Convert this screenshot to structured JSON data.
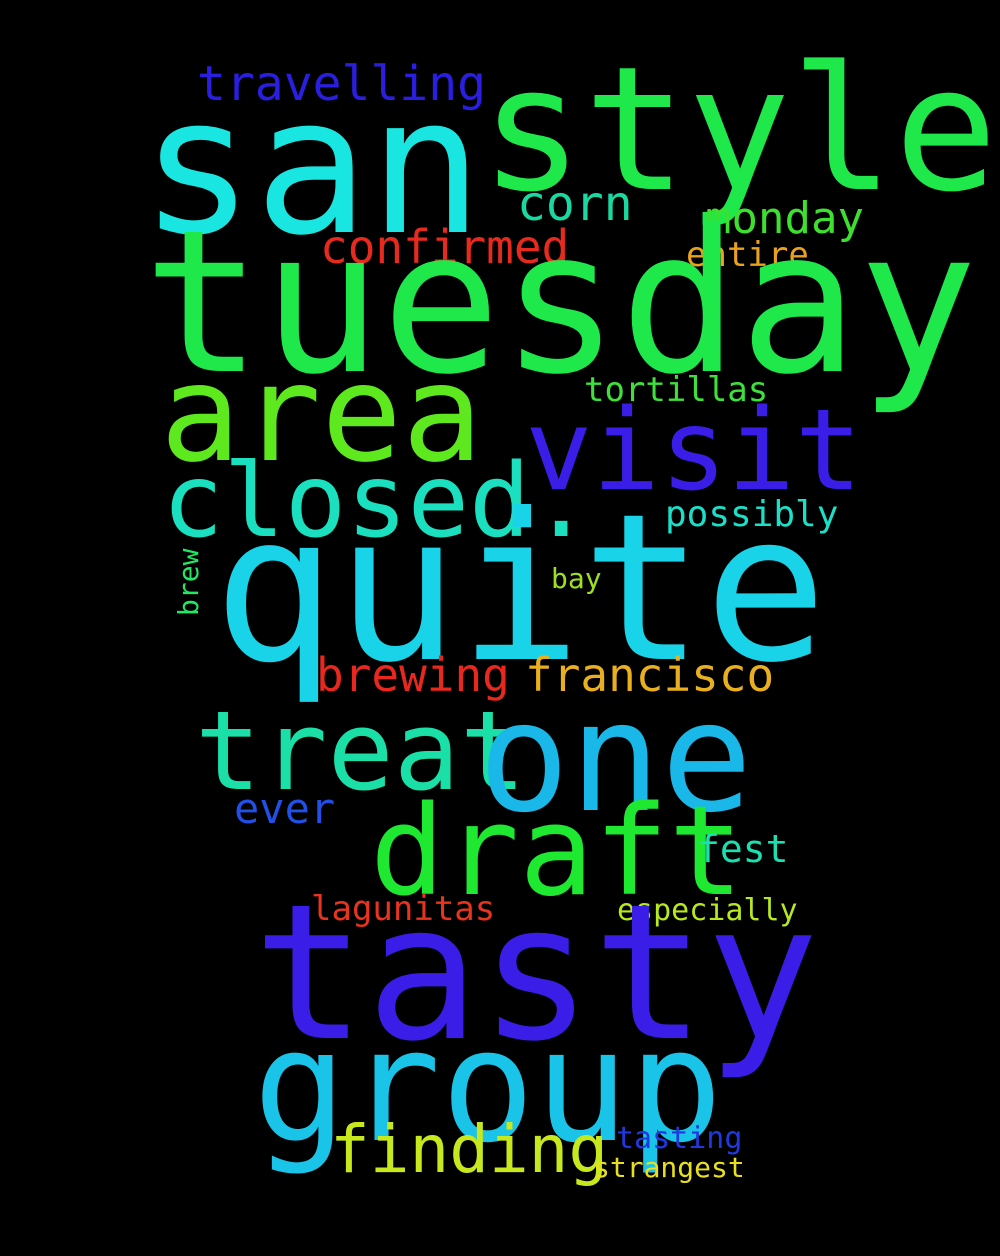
{
  "canvas": {
    "background": "#000000"
  },
  "words": [
    {
      "id": "w-san",
      "text": "san",
      "color": "#19e6e0"
    },
    {
      "id": "w-style",
      "text": "style",
      "color": "#1ee84a"
    },
    {
      "id": "w-travelling",
      "text": "travelling",
      "color": "#2a1fe0"
    },
    {
      "id": "w-corn",
      "text": "corn",
      "color": "#1ad9a0"
    },
    {
      "id": "w-monday",
      "text": "monday",
      "color": "#3ee030"
    },
    {
      "id": "w-confirmed",
      "text": "confirmed",
      "color": "#e82a1e"
    },
    {
      "id": "w-entire",
      "text": "entire",
      "color": "#e8a21e"
    },
    {
      "id": "w-tuesday",
      "text": "tuesday",
      "color": "#1ee84a"
    },
    {
      "id": "w-area",
      "text": "area",
      "color": "#5ee81e"
    },
    {
      "id": "w-tortillas",
      "text": "tortillas",
      "color": "#3ee03a"
    },
    {
      "id": "w-visit",
      "text": "visit",
      "color": "#3a1ee8"
    },
    {
      "id": "w-closed",
      "text": "closed.",
      "color": "#1ae0c0"
    },
    {
      "id": "w-possibly",
      "text": "possibly",
      "color": "#1ae0c8"
    },
    {
      "id": "w-quite",
      "text": "quite",
      "color": "#19d4e8"
    },
    {
      "id": "w-bay",
      "text": "bay",
      "color": "#9ee01e"
    },
    {
      "id": "w-brew",
      "text": "brew",
      "color": "#1ee864",
      "vertical": true
    },
    {
      "id": "w-brewing",
      "text": "brewing",
      "color": "#e8281e"
    },
    {
      "id": "w-francisco",
      "text": "francisco",
      "color": "#e8b01e"
    },
    {
      "id": "w-treat",
      "text": "treat",
      "color": "#1ae0a8"
    },
    {
      "id": "w-one",
      "text": "one",
      "color": "#19b8e8"
    },
    {
      "id": "w-ever",
      "text": "ever",
      "color": "#2050e8"
    },
    {
      "id": "w-draft",
      "text": "draft",
      "color": "#1ee830"
    },
    {
      "id": "w-fest",
      "text": "fest",
      "color": "#1ae0b0"
    },
    {
      "id": "w-lagunitas",
      "text": "lagunitas",
      "color": "#e8341e"
    },
    {
      "id": "w-especially",
      "text": "especially",
      "color": "#b8e81e"
    },
    {
      "id": "w-tasty",
      "text": "tasty",
      "color": "#3a1ee8"
    },
    {
      "id": "w-group",
      "text": "group",
      "color": "#19c4e8"
    },
    {
      "id": "w-finding",
      "text": "finding",
      "color": "#c8e81e"
    },
    {
      "id": "w-tasting",
      "text": "tasting",
      "color": "#2038e0"
    },
    {
      "id": "w-strangest",
      "text": "strangest",
      "color": "#e8e01e"
    }
  ]
}
